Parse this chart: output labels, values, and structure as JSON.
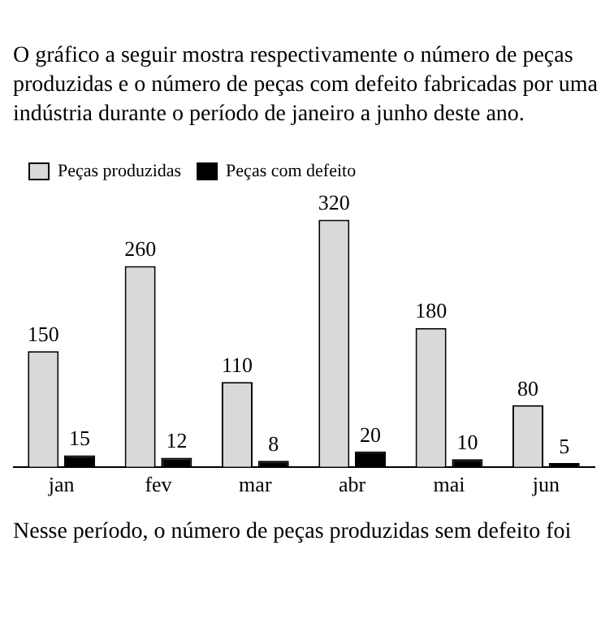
{
  "chart_data": {
    "type": "bar",
    "title": "O gráfico a seguir mostra respectivamente o número de peças produzidas e o número de peças com defeito fabricadas por uma indústria durante o período de janeiro a junho deste ano.",
    "categories": [
      "jan",
      "fev",
      "mar",
      "abr",
      "mai",
      "jun"
    ],
    "series": [
      {
        "name": "Peças produzidas",
        "color": "#d9d9d9",
        "values": [
          150,
          260,
          110,
          320,
          180,
          80
        ]
      },
      {
        "name": "Peças com defeito",
        "color": "#000000",
        "values": [
          15,
          12,
          8,
          20,
          10,
          5
        ]
      }
    ],
    "data_labels": true,
    "grid": false,
    "legend": "top left",
    "annotations": [
      "Nesse período, o número de peças produzidas sem defeito foi"
    ]
  }
}
